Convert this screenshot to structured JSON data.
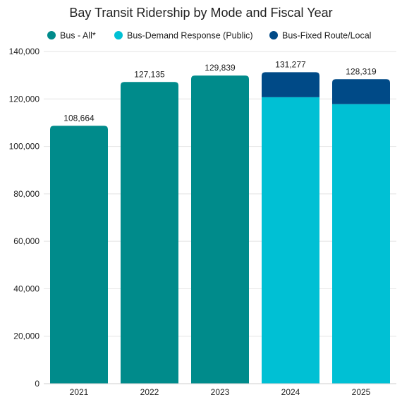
{
  "chart_data": {
    "type": "bar",
    "stacked": true,
    "title": "Bay Transit Ridership by Mode and Fiscal Year",
    "xlabel": "",
    "ylabel": "",
    "categories": [
      "2021",
      "2022",
      "2023",
      "2024",
      "2025"
    ],
    "series": [
      {
        "name": "Bus - All*",
        "color": "#008b8b",
        "values": [
          108664,
          127135,
          129839,
          0,
          0
        ]
      },
      {
        "name": "Bus-Demand Response (Public)",
        "color": "#00c0d4",
        "values": [
          0,
          0,
          0,
          120700,
          117800
        ]
      },
      {
        "name": "Bus-Fixed Route/Local",
        "color": "#004a87",
        "values": [
          0,
          0,
          0,
          10577,
          10519
        ]
      }
    ],
    "totals": [
      108664,
      127135,
      129839,
      131277,
      128319
    ],
    "total_labels": [
      "108,664",
      "127,135",
      "129,839",
      "131,277",
      "128,319"
    ],
    "ylim": [
      0,
      140000
    ],
    "yticks": [
      0,
      20000,
      40000,
      60000,
      80000,
      100000,
      120000,
      140000
    ],
    "ytick_labels": [
      "0",
      "20,000",
      "40,000",
      "60,000",
      "80,000",
      "100,000",
      "120,000",
      "140,000"
    ],
    "grid": true,
    "legend_position": "top"
  }
}
